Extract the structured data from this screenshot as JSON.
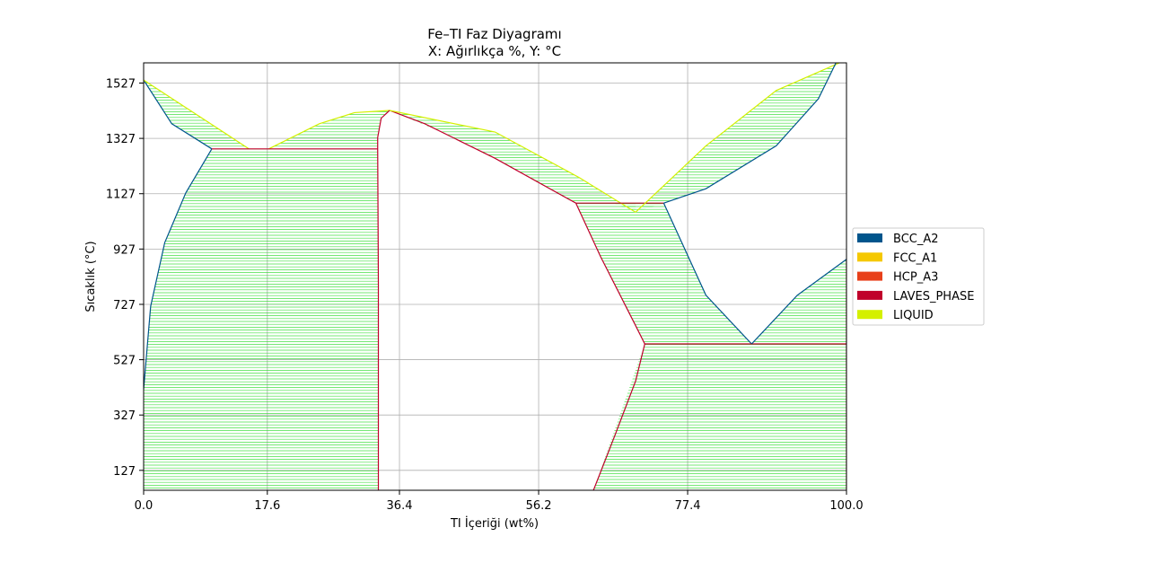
{
  "chart_data": {
    "type": "area",
    "title": "Fe–TI Faz Diyagramı",
    "subtitle": "X: Ağırlıkça %, Y: °C",
    "xlabel": "TI İçeriği (wt%)",
    "ylabel": "Sıcaklık (°C)",
    "xlim": [
      0,
      100
    ],
    "ylim": [
      55,
      1600
    ],
    "xticks": [
      "0.0",
      "17.6",
      "36.4",
      "56.2",
      "77.4",
      "100.0"
    ],
    "xtick_values": [
      0,
      17.6,
      36.4,
      56.2,
      77.4,
      100
    ],
    "yticks": [
      "127",
      "327",
      "527",
      "727",
      "927",
      "1127",
      "1327",
      "1527"
    ],
    "ytick_values": [
      127,
      327,
      527,
      727,
      927,
      1127,
      1327,
      1527
    ],
    "grid": true,
    "legend_position": "right",
    "legend": [
      {
        "name": "BCC_A2",
        "color": "#00558c"
      },
      {
        "name": "FCC_A1",
        "color": "#f5c800"
      },
      {
        "name": "HCP_A3",
        "color": "#e8401a"
      },
      {
        "name": "LAVES_PHASE",
        "color": "#c0002a"
      },
      {
        "name": "LIQUID",
        "color": "#d4f000"
      }
    ],
    "tie_line_color": "#33dd33",
    "regions": [
      {
        "name": "left-liquidus-region",
        "top": [
          [
            0,
            1538
          ],
          [
            15,
            1289
          ]
        ],
        "bottom": [
          [
            0,
            1538
          ],
          [
            4,
            1380
          ],
          [
            9.7,
            1289
          ],
          [
            15,
            1289
          ]
        ]
      },
      {
        "name": "left-bcc-laves-region",
        "top": [
          [
            9.7,
            1289
          ],
          [
            33.3,
            1289
          ]
        ],
        "bottom": [
          [
            0,
            55
          ],
          [
            0,
            420
          ],
          [
            1,
            720
          ],
          [
            3,
            950
          ],
          [
            6,
            1130
          ],
          [
            9.7,
            1289
          ],
          [
            33.3,
            1289
          ],
          [
            33.4,
            800
          ],
          [
            33.4,
            55
          ]
        ]
      },
      {
        "name": "central-liquid-laves-left-region",
        "top": [
          [
            17.8,
            1289
          ],
          [
            25,
            1380
          ],
          [
            30,
            1420
          ],
          [
            35,
            1428
          ]
        ],
        "bottom": [
          [
            17.8,
            1289
          ],
          [
            33.3,
            1289
          ],
          [
            33.3,
            1330
          ],
          [
            33.8,
            1400
          ],
          [
            35,
            1428
          ]
        ]
      },
      {
        "name": "central-liquid-laves-right-region",
        "top": [
          [
            35,
            1428
          ],
          [
            50,
            1350
          ],
          [
            62,
            1185
          ],
          [
            70,
            1060
          ]
        ],
        "bottom": [
          [
            35,
            1428
          ],
          [
            40,
            1380
          ],
          [
            50,
            1255
          ],
          [
            61.5,
            1093
          ],
          [
            70,
            1093
          ],
          [
            70,
            1060
          ]
        ]
      },
      {
        "name": "right-liquid-bcc-region",
        "top": [
          [
            70,
            1060
          ],
          [
            80,
            1300
          ],
          [
            90,
            1500
          ],
          [
            99,
            1600
          ]
        ],
        "bottom": [
          [
            70,
            1060
          ],
          [
            74,
            1093
          ],
          [
            80,
            1145
          ],
          [
            90,
            1300
          ],
          [
            96,
            1470
          ],
          [
            98.5,
            1600
          ],
          [
            99,
            1600
          ]
        ]
      },
      {
        "name": "middle-laves-bcc-region",
        "top": [
          [
            61.5,
            1093
          ],
          [
            74,
            1093
          ]
        ],
        "bottom": [
          [
            61.5,
            1093
          ],
          [
            65,
            900
          ],
          [
            70,
            650
          ],
          [
            71.3,
            584
          ],
          [
            86.5,
            584
          ],
          [
            80,
            760
          ],
          [
            74,
            1093
          ]
        ]
      },
      {
        "name": "lower-right-region",
        "top": [
          [
            71.3,
            584
          ],
          [
            100,
            584
          ]
        ],
        "bottom": [
          [
            64,
            55
          ],
          [
            67,
            250
          ],
          [
            70,
            450
          ],
          [
            71.3,
            584
          ],
          [
            100,
            584
          ],
          [
            100,
            55
          ]
        ]
      },
      {
        "name": "right-bcc-hcp-region",
        "top": [
          [
            86.5,
            584
          ],
          [
            93,
            760
          ],
          [
            100,
            890
          ]
        ],
        "bottom": [
          [
            86.5,
            584
          ],
          [
            100,
            584
          ],
          [
            100,
            890
          ]
        ]
      }
    ],
    "boundaries": [
      {
        "name": "left-solidus",
        "color": "#00558c",
        "points": [
          [
            0,
            1538
          ],
          [
            4,
            1380
          ],
          [
            9.7,
            1289
          ]
        ]
      },
      {
        "name": "left-bcc-boundary",
        "color": "#00558c",
        "points": [
          [
            0,
            420
          ],
          [
            1,
            720
          ],
          [
            3,
            950
          ],
          [
            6,
            1130
          ],
          [
            9.7,
            1289
          ]
        ]
      },
      {
        "name": "left-liquidus",
        "color": "#d4f000",
        "points": [
          [
            0,
            1538
          ],
          [
            15,
            1289
          ]
        ]
      },
      {
        "name": "left-liquidus-rise",
        "color": "#d4f000",
        "points": [
          [
            17.8,
            1289
          ],
          [
            25,
            1380
          ],
          [
            30,
            1420
          ],
          [
            35,
            1428
          ]
        ]
      },
      {
        "name": "eutectic-line-1",
        "color": "#c0002a",
        "points": [
          [
            9.7,
            1289
          ],
          [
            33.3,
            1289
          ]
        ]
      },
      {
        "name": "laves-left-boundary",
        "color": "#c0002a",
        "points": [
          [
            33.4,
            55
          ],
          [
            33.4,
            800
          ],
          [
            33.3,
            1289
          ],
          [
            33.3,
            1330
          ],
          [
            33.8,
            1400
          ],
          [
            35,
            1428
          ]
        ]
      },
      {
        "name": "laves-right-boundary",
        "color": "#c0002a",
        "points": [
          [
            35,
            1428
          ],
          [
            40,
            1380
          ],
          [
            50,
            1255
          ],
          [
            61.5,
            1093
          ]
        ]
      },
      {
        "name": "central-liquidus",
        "color": "#d4f000",
        "points": [
          [
            35,
            1428
          ],
          [
            50,
            1350
          ],
          [
            62,
            1185
          ],
          [
            70,
            1060
          ]
        ]
      },
      {
        "name": "eutectic-line-2",
        "color": "#c0002a",
        "points": [
          [
            61.5,
            1093
          ],
          [
            74,
            1093
          ]
        ]
      },
      {
        "name": "right-liquidus",
        "color": "#d4f000",
        "points": [
          [
            70,
            1060
          ],
          [
            80,
            1300
          ],
          [
            90,
            1500
          ],
          [
            99,
            1600
          ]
        ]
      },
      {
        "name": "right-solidus",
        "color": "#00558c",
        "points": [
          [
            74,
            1093
          ],
          [
            80,
            1145
          ],
          [
            90,
            1300
          ],
          [
            96,
            1470
          ],
          [
            98.5,
            1600
          ]
        ]
      },
      {
        "name": "bcc-left-slope",
        "color": "#00558c",
        "points": [
          [
            74,
            1093
          ],
          [
            80,
            760
          ],
          [
            86.5,
            584
          ]
        ]
      },
      {
        "name": "laves-middle-boundary",
        "color": "#c0002a",
        "points": [
          [
            61.5,
            1093
          ],
          [
            65,
            900
          ],
          [
            70,
            650
          ],
          [
            71.3,
            584
          ]
        ]
      },
      {
        "name": "eutectoid-line",
        "color": "#c0002a",
        "points": [
          [
            71.3,
            584
          ],
          [
            100,
            584
          ]
        ]
      },
      {
        "name": "laves-lower-boundary",
        "color": "#c0002a",
        "points": [
          [
            64,
            55
          ],
          [
            67,
            250
          ],
          [
            70,
            450
          ],
          [
            71.3,
            584
          ]
        ]
      },
      {
        "name": "bcc-right-rise",
        "color": "#00558c",
        "points": [
          [
            86.5,
            584
          ],
          [
            93,
            760
          ],
          [
            100,
            890
          ]
        ]
      },
      {
        "name": "right-edge",
        "color": "#c0002a",
        "points": [
          [
            100,
            55
          ],
          [
            100,
            890
          ]
        ]
      }
    ]
  }
}
